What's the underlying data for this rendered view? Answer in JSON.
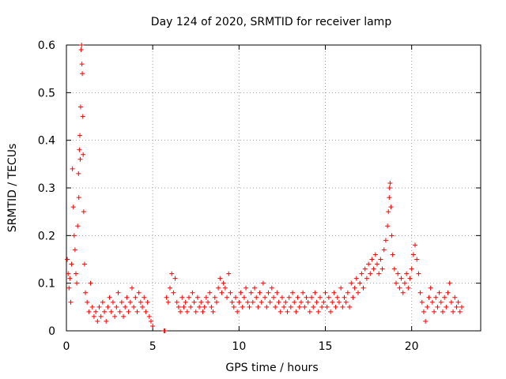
{
  "chart_data": {
    "type": "scatter",
    "title": "Day 124 of 2020, SRMTID for receiver lamp",
    "xlabel": "GPS time / hours",
    "ylabel": "SRMTID / TECUs",
    "xlim": [
      0,
      24
    ],
    "ylim": [
      0,
      0.6
    ],
    "x_ticks": [
      0,
      5,
      10,
      15,
      20
    ],
    "x_tick_labels": [
      "0",
      "5",
      "10",
      "15",
      "20"
    ],
    "y_ticks": [
      0,
      0.1,
      0.2,
      0.3,
      0.4,
      0.5,
      0.6
    ],
    "y_tick_labels": [
      "0",
      "0.1",
      "0.2",
      "0.3",
      "0.4",
      "0.5",
      "0.6"
    ],
    "grid": true,
    "marker": "plus",
    "series": [
      {
        "name": "SRMTID",
        "color": "#ff0000",
        "points": [
          [
            0.05,
            0.15
          ],
          [
            0.1,
            0.12
          ],
          [
            0.15,
            0.09
          ],
          [
            0.2,
            0.11
          ],
          [
            0.25,
            0.06
          ],
          [
            0.3,
            0.14
          ],
          [
            0.35,
            0.34
          ],
          [
            0.4,
            0.26
          ],
          [
            0.45,
            0.2
          ],
          [
            0.5,
            0.17
          ],
          [
            0.55,
            0.12
          ],
          [
            0.6,
            0.1
          ],
          [
            0.65,
            0.22
          ],
          [
            0.7,
            0.33
          ],
          [
            0.72,
            0.28
          ],
          [
            0.75,
            0.38
          ],
          [
            0.78,
            0.41
          ],
          [
            0.8,
            0.36
          ],
          [
            0.82,
            0.47
          ],
          [
            0.85,
            0.59
          ],
          [
            0.88,
            0.6
          ],
          [
            0.9,
            0.56
          ],
          [
            0.92,
            0.54
          ],
          [
            0.95,
            0.45
          ],
          [
            0.97,
            0.37
          ],
          [
            1.0,
            0.25
          ],
          [
            1.05,
            0.14
          ],
          [
            1.1,
            0.08
          ],
          [
            1.2,
            0.06
          ],
          [
            1.3,
            0.04
          ],
          [
            1.4,
            0.1
          ],
          [
            1.5,
            0.05
          ],
          [
            1.6,
            0.03
          ],
          [
            1.7,
            0.04
          ],
          [
            1.8,
            0.02
          ],
          [
            1.9,
            0.05
          ],
          [
            2.0,
            0.03
          ],
          [
            2.1,
            0.06
          ],
          [
            2.2,
            0.04
          ],
          [
            2.3,
            0.02
          ],
          [
            2.4,
            0.05
          ],
          [
            2.5,
            0.07
          ],
          [
            2.6,
            0.04
          ],
          [
            2.7,
            0.06
          ],
          [
            2.8,
            0.03
          ],
          [
            2.9,
            0.05
          ],
          [
            3.0,
            0.08
          ],
          [
            3.1,
            0.04
          ],
          [
            3.2,
            0.06
          ],
          [
            3.3,
            0.03
          ],
          [
            3.4,
            0.05
          ],
          [
            3.5,
            0.07
          ],
          [
            3.6,
            0.04
          ],
          [
            3.7,
            0.06
          ],
          [
            3.8,
            0.09
          ],
          [
            3.9,
            0.05
          ],
          [
            4.0,
            0.07
          ],
          [
            4.1,
            0.04
          ],
          [
            4.2,
            0.08
          ],
          [
            4.3,
            0.06
          ],
          [
            4.4,
            0.05
          ],
          [
            4.5,
            0.07
          ],
          [
            4.6,
            0.04
          ],
          [
            4.7,
            0.06
          ],
          [
            4.8,
            0.03
          ],
          [
            4.9,
            0.02
          ],
          [
            5.0,
            0.01
          ],
          [
            5.65,
            0.0
          ],
          [
            5.7,
            0.0
          ],
          [
            5.8,
            0.07
          ],
          [
            5.9,
            0.06
          ],
          [
            6.0,
            0.09
          ],
          [
            6.1,
            0.12
          ],
          [
            6.2,
            0.08
          ],
          [
            6.3,
            0.11
          ],
          [
            6.4,
            0.06
          ],
          [
            6.5,
            0.05
          ],
          [
            6.6,
            0.04
          ],
          [
            6.7,
            0.07
          ],
          [
            6.8,
            0.05
          ],
          [
            6.9,
            0.06
          ],
          [
            7.0,
            0.04
          ],
          [
            7.1,
            0.07
          ],
          [
            7.2,
            0.05
          ],
          [
            7.3,
            0.08
          ],
          [
            7.4,
            0.06
          ],
          [
            7.5,
            0.04
          ],
          [
            7.6,
            0.07
          ],
          [
            7.7,
            0.05
          ],
          [
            7.8,
            0.06
          ],
          [
            7.9,
            0.04
          ],
          [
            8.0,
            0.05
          ],
          [
            8.1,
            0.07
          ],
          [
            8.2,
            0.06
          ],
          [
            8.3,
            0.08
          ],
          [
            8.4,
            0.05
          ],
          [
            8.5,
            0.04
          ],
          [
            8.6,
            0.07
          ],
          [
            8.7,
            0.06
          ],
          [
            8.8,
            0.09
          ],
          [
            8.9,
            0.11
          ],
          [
            9.0,
            0.08
          ],
          [
            9.1,
            0.1
          ],
          [
            9.2,
            0.09
          ],
          [
            9.3,
            0.07
          ],
          [
            9.4,
            0.12
          ],
          [
            9.5,
            0.08
          ],
          [
            9.6,
            0.06
          ],
          [
            9.7,
            0.05
          ],
          [
            9.8,
            0.07
          ],
          [
            9.9,
            0.04
          ],
          [
            10.0,
            0.06
          ],
          [
            10.1,
            0.08
          ],
          [
            10.2,
            0.05
          ],
          [
            10.3,
            0.07
          ],
          [
            10.4,
            0.09
          ],
          [
            10.5,
            0.06
          ],
          [
            10.6,
            0.05
          ],
          [
            10.7,
            0.08
          ],
          [
            10.8,
            0.06
          ],
          [
            10.9,
            0.09
          ],
          [
            11.0,
            0.07
          ],
          [
            11.1,
            0.05
          ],
          [
            11.2,
            0.08
          ],
          [
            11.3,
            0.06
          ],
          [
            11.4,
            0.1
          ],
          [
            11.5,
            0.07
          ],
          [
            11.6,
            0.05
          ],
          [
            11.7,
            0.08
          ],
          [
            11.8,
            0.06
          ],
          [
            11.9,
            0.09
          ],
          [
            12.0,
            0.07
          ],
          [
            12.1,
            0.05
          ],
          [
            12.2,
            0.08
          ],
          [
            12.3,
            0.06
          ],
          [
            12.4,
            0.04
          ],
          [
            12.5,
            0.07
          ],
          [
            12.6,
            0.05
          ],
          [
            12.7,
            0.06
          ],
          [
            12.8,
            0.04
          ],
          [
            12.9,
            0.07
          ],
          [
            13.0,
            0.05
          ],
          [
            13.1,
            0.08
          ],
          [
            13.2,
            0.06
          ],
          [
            13.3,
            0.04
          ],
          [
            13.4,
            0.07
          ],
          [
            13.5,
            0.05
          ],
          [
            13.6,
            0.06
          ],
          [
            13.7,
            0.08
          ],
          [
            13.8,
            0.05
          ],
          [
            13.9,
            0.07
          ],
          [
            14.0,
            0.06
          ],
          [
            14.1,
            0.04
          ],
          [
            14.2,
            0.07
          ],
          [
            14.3,
            0.05
          ],
          [
            14.4,
            0.08
          ],
          [
            14.5,
            0.06
          ],
          [
            14.6,
            0.04
          ],
          [
            14.7,
            0.07
          ],
          [
            14.8,
            0.05
          ],
          [
            14.9,
            0.06
          ],
          [
            15.0,
            0.08
          ],
          [
            15.1,
            0.05
          ],
          [
            15.2,
            0.07
          ],
          [
            15.3,
            0.04
          ],
          [
            15.4,
            0.06
          ],
          [
            15.5,
            0.08
          ],
          [
            15.6,
            0.05
          ],
          [
            15.7,
            0.07
          ],
          [
            15.8,
            0.06
          ],
          [
            15.9,
            0.09
          ],
          [
            16.0,
            0.05
          ],
          [
            16.1,
            0.07
          ],
          [
            16.2,
            0.06
          ],
          [
            16.3,
            0.08
          ],
          [
            16.4,
            0.05
          ],
          [
            16.5,
            0.1
          ],
          [
            16.6,
            0.07
          ],
          [
            16.7,
            0.09
          ],
          [
            16.8,
            0.11
          ],
          [
            16.9,
            0.08
          ],
          [
            17.0,
            0.1
          ],
          [
            17.1,
            0.12
          ],
          [
            17.2,
            0.09
          ],
          [
            17.3,
            0.13
          ],
          [
            17.4,
            0.11
          ],
          [
            17.5,
            0.14
          ],
          [
            17.6,
            0.12
          ],
          [
            17.7,
            0.15
          ],
          [
            17.8,
            0.13
          ],
          [
            17.9,
            0.16
          ],
          [
            18.0,
            0.14
          ],
          [
            18.1,
            0.12
          ],
          [
            18.2,
            0.15
          ],
          [
            18.3,
            0.13
          ],
          [
            18.4,
            0.17
          ],
          [
            18.5,
            0.19
          ],
          [
            18.6,
            0.22
          ],
          [
            18.65,
            0.25
          ],
          [
            18.7,
            0.28
          ],
          [
            18.72,
            0.3
          ],
          [
            18.75,
            0.31
          ],
          [
            18.8,
            0.26
          ],
          [
            18.85,
            0.2
          ],
          [
            18.9,
            0.16
          ],
          [
            19.0,
            0.13
          ],
          [
            19.1,
            0.1
          ],
          [
            19.2,
            0.12
          ],
          [
            19.3,
            0.09
          ],
          [
            19.4,
            0.11
          ],
          [
            19.5,
            0.08
          ],
          [
            19.6,
            0.1
          ],
          [
            19.7,
            0.12
          ],
          [
            19.8,
            0.09
          ],
          [
            19.9,
            0.11
          ],
          [
            20.0,
            0.13
          ],
          [
            20.1,
            0.16
          ],
          [
            20.2,
            0.18
          ],
          [
            20.3,
            0.15
          ],
          [
            20.4,
            0.12
          ],
          [
            20.5,
            0.08
          ],
          [
            20.6,
            0.06
          ],
          [
            20.7,
            0.04
          ],
          [
            20.8,
            0.02
          ],
          [
            20.9,
            0.05
          ],
          [
            21.0,
            0.07
          ],
          [
            21.1,
            0.09
          ],
          [
            21.2,
            0.06
          ],
          [
            21.3,
            0.04
          ],
          [
            21.4,
            0.07
          ],
          [
            21.5,
            0.05
          ],
          [
            21.6,
            0.08
          ],
          [
            21.7,
            0.06
          ],
          [
            21.8,
            0.04
          ],
          [
            21.9,
            0.07
          ],
          [
            22.0,
            0.05
          ],
          [
            22.1,
            0.08
          ],
          [
            22.2,
            0.1
          ],
          [
            22.3,
            0.06
          ],
          [
            22.4,
            0.04
          ],
          [
            22.5,
            0.07
          ],
          [
            22.6,
            0.05
          ],
          [
            22.7,
            0.06
          ],
          [
            22.8,
            0.04
          ],
          [
            22.9,
            0.05
          ]
        ]
      }
    ]
  }
}
